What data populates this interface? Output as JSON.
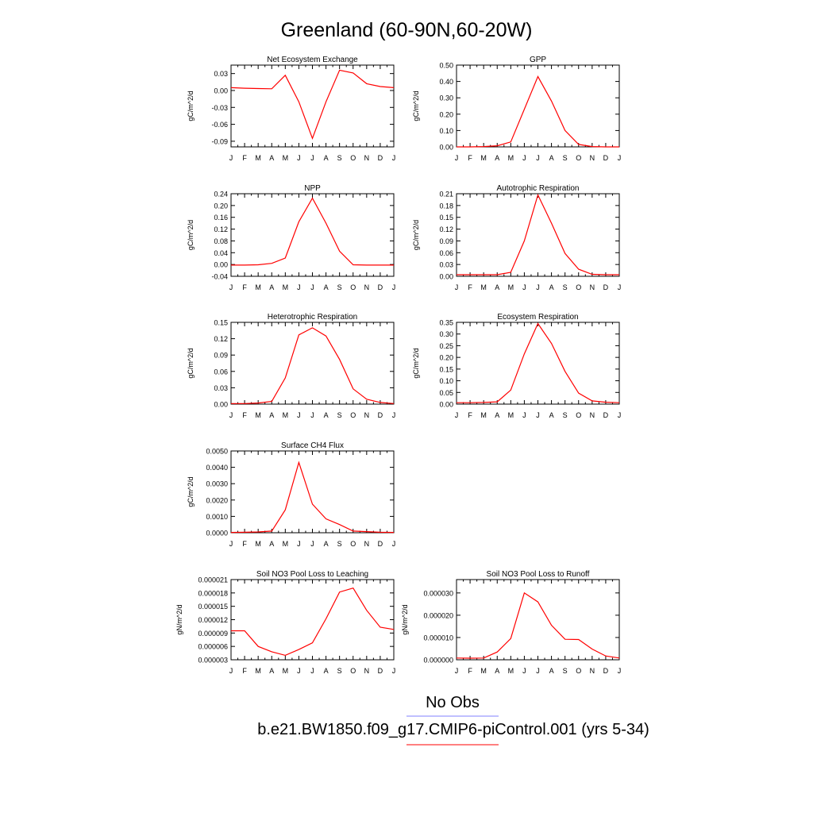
{
  "title": "Greenland (60-90N,60-20W)",
  "months": [
    "J",
    "F",
    "M",
    "A",
    "M",
    "J",
    "J",
    "A",
    "S",
    "O",
    "N",
    "D",
    "J"
  ],
  "legend": {
    "obs_label": "No Obs",
    "obs_color": "#8080ff",
    "model_label": "b.e21.BW1850.f09_g17.CMIP6-piControl.001 (yrs 5-34)",
    "model_color": "#ff0000"
  },
  "chart_data": [
    {
      "type": "line",
      "title": "Net Ecosystem Exchange",
      "ylabel": "gC/m^2/d",
      "ylim": [
        -0.1,
        0.045
      ],
      "yticks": [
        "0.03",
        "0.00",
        "-0.03",
        "-0.06",
        "-0.09"
      ],
      "ytick_values": [
        0.03,
        0.0,
        -0.03,
        -0.06,
        -0.09
      ],
      "values": [
        0.005,
        0.004,
        0.0035,
        0.003,
        0.027,
        -0.02,
        -0.085,
        -0.02,
        0.036,
        0.031,
        0.012,
        0.007,
        0.005
      ]
    },
    {
      "type": "line",
      "title": "GPP",
      "ylabel": "gC/m^2/d",
      "ylim": [
        0,
        0.5
      ],
      "yticks": [
        "0.50",
        "0.40",
        "0.30",
        "0.20",
        "0.10",
        "0.00"
      ],
      "ytick_values": [
        0.5,
        0.4,
        0.3,
        0.2,
        0.1,
        0.0
      ],
      "values": [
        0.0,
        0.0,
        0.002,
        0.007,
        0.03,
        0.23,
        0.43,
        0.28,
        0.1,
        0.015,
        0.002,
        0.0,
        0.0
      ]
    },
    {
      "type": "line",
      "title": "NPP",
      "ylabel": "gC/m^2/d",
      "ylim": [
        -0.04,
        0.24
      ],
      "yticks": [
        "0.24",
        "0.20",
        "0.16",
        "0.12",
        "0.08",
        "0.04",
        "0.00",
        "-0.04"
      ],
      "ytick_values": [
        0.24,
        0.2,
        0.16,
        0.12,
        0.08,
        0.04,
        0.0,
        -0.04
      ],
      "values": [
        -0.002,
        -0.002,
        -0.001,
        0.004,
        0.022,
        0.145,
        0.225,
        0.14,
        0.045,
        -0.001,
        -0.002,
        -0.002,
        -0.002
      ]
    },
    {
      "type": "line",
      "title": "Autotrophic Respiration",
      "ylabel": "gC/m^2/d",
      "ylim": [
        0,
        0.21
      ],
      "yticks": [
        "0.21",
        "0.18",
        "0.15",
        "0.12",
        "0.09",
        "0.06",
        "0.03",
        "0.00"
      ],
      "ytick_values": [
        0.21,
        0.18,
        0.15,
        0.12,
        0.09,
        0.06,
        0.03,
        0.0
      ],
      "values": [
        0.004,
        0.004,
        0.004,
        0.004,
        0.01,
        0.09,
        0.207,
        0.135,
        0.058,
        0.018,
        0.005,
        0.004,
        0.004
      ]
    },
    {
      "type": "line",
      "title": "Heterotrophic Respiration",
      "ylabel": "gC/m^2/d",
      "ylim": [
        0,
        0.15
      ],
      "yticks": [
        "0.15",
        "0.12",
        "0.09",
        "0.06",
        "0.03",
        "0.00"
      ],
      "ytick_values": [
        0.15,
        0.12,
        0.09,
        0.06,
        0.03,
        0.0
      ],
      "values": [
        0.001,
        0.001,
        0.002,
        0.005,
        0.048,
        0.127,
        0.14,
        0.125,
        0.082,
        0.028,
        0.009,
        0.003,
        0.001
      ]
    },
    {
      "type": "line",
      "title": "Ecosystem Respiration",
      "ylabel": "gC/m^2/d",
      "ylim": [
        0,
        0.35
      ],
      "yticks": [
        "0.35",
        "0.30",
        "0.25",
        "0.20",
        "0.15",
        "0.10",
        "0.05",
        "0.00"
      ],
      "ytick_values": [
        0.35,
        0.3,
        0.25,
        0.2,
        0.15,
        0.1,
        0.05,
        0.0
      ],
      "values": [
        0.006,
        0.006,
        0.007,
        0.01,
        0.06,
        0.215,
        0.345,
        0.26,
        0.14,
        0.047,
        0.014,
        0.008,
        0.006
      ]
    },
    {
      "type": "line",
      "title": "Surface CH4 Flux",
      "ylabel": "gC/m^2/d",
      "ylim": [
        0,
        0.005
      ],
      "yticks": [
        "0.0050",
        "0.0040",
        "0.0030",
        "0.0020",
        "0.0010",
        "0.0000"
      ],
      "ytick_values": [
        0.005,
        0.004,
        0.003,
        0.002,
        0.001,
        0.0
      ],
      "values": [
        2e-05,
        3e-05,
        5e-05,
        0.0001,
        0.0014,
        0.0043,
        0.00175,
        0.00085,
        0.0005,
        0.0001,
        7e-05,
        3e-05,
        2e-05
      ]
    },
    {
      "type": "line",
      "title": "Soil NO3 Pool Loss to Leaching",
      "ylabel": "gN/m^2/d",
      "ylim": [
        3e-06,
        2.1e-05
      ],
      "yticks": [
        "0.000021",
        "0.000018",
        "0.000015",
        "0.000012",
        "0.000009",
        "0.000006",
        "0.000003"
      ],
      "ytick_values": [
        2.1e-05,
        1.8e-05,
        1.5e-05,
        1.2e-05,
        9e-06,
        6e-06,
        3e-06
      ],
      "values": [
        9.5e-06,
        9.5e-06,
        6e-06,
        4.8e-06,
        4e-06,
        5.3e-06,
        6.8e-06,
        1.22e-05,
        1.82e-05,
        1.91e-05,
        1.41e-05,
        1.03e-05,
        9.8e-06
      ]
    },
    {
      "type": "line",
      "title": "Soil NO3 Pool Loss to Runoff",
      "ylabel": "gN/m^2/d",
      "ylim": [
        0,
        3.6e-05
      ],
      "yticks": [
        "0.000030",
        "0.000020",
        "0.000010",
        "0.000000"
      ],
      "ytick_values": [
        3e-05,
        2e-05,
        1e-05,
        0.0
      ],
      "values": [
        8e-07,
        7e-07,
        8e-07,
        3.5e-06,
        9.5e-06,
        3e-05,
        2.6e-05,
        1.55e-05,
        9.2e-06,
        9.1e-06,
        4.8e-06,
        1.7e-06,
        8e-07
      ]
    }
  ]
}
